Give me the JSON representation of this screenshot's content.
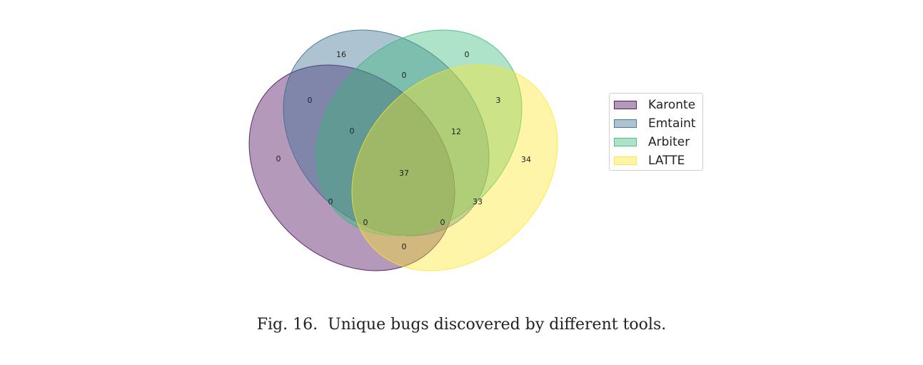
{
  "chart_data": {
    "type": "venn",
    "sets": [
      "Karonte",
      "Emtaint",
      "Arbiter",
      "LATTE"
    ],
    "colors": {
      "Karonte": "#440154",
      "Emtaint": "#31688e",
      "Arbiter": "#35b779",
      "LATTE": "#fde725"
    },
    "regions": [
      {
        "sets": [
          "Karonte"
        ],
        "value": 0
      },
      {
        "sets": [
          "Emtaint"
        ],
        "value": 16
      },
      {
        "sets": [
          "Arbiter"
        ],
        "value": 0
      },
      {
        "sets": [
          "LATTE"
        ],
        "value": 34
      },
      {
        "sets": [
          "Karonte",
          "Emtaint"
        ],
        "value": 0
      },
      {
        "sets": [
          "Emtaint",
          "Arbiter"
        ],
        "value": 0
      },
      {
        "sets": [
          "Arbiter",
          "LATTE"
        ],
        "value": 3
      },
      {
        "sets": [
          "Karonte",
          "LATTE"
        ],
        "value": 0
      },
      {
        "sets": [
          "Karonte",
          "Emtaint",
          "Arbiter"
        ],
        "value": 0
      },
      {
        "sets": [
          "Emtaint",
          "Arbiter",
          "LATTE"
        ],
        "value": 12
      },
      {
        "sets": [
          "Karonte",
          "Emtaint",
          "Arbiter",
          "LATTE"
        ],
        "value": 37
      },
      {
        "sets": [
          "Karonte",
          "Arbiter"
        ],
        "value": 0
      },
      {
        "sets": [
          "Emtaint",
          "LATTE"
        ],
        "value": 33
      },
      {
        "sets": [
          "Karonte",
          "Arbiter",
          "LATTE"
        ],
        "value": 0
      },
      {
        "sets": [
          "Karonte",
          "Emtaint",
          "LATTE"
        ],
        "value": 0
      }
    ],
    "legend": [
      "Karonte",
      "Emtaint",
      "Arbiter",
      "LATTE"
    ],
    "legend_position": "right"
  },
  "caption": "Fig. 16.  Unique bugs discovered by different tools."
}
